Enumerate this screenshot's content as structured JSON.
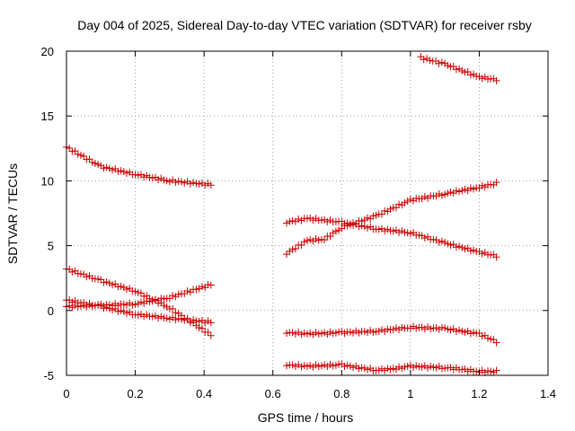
{
  "chart_data": {
    "type": "scatter",
    "title": "Day 004 of 2025, Sidereal Day-to-day VTEC variation (SDTVAR) for receiver rsby",
    "xlabel": "GPS time / hours",
    "ylabel": "SDTVAR / TECUs",
    "xlim": [
      0,
      1.4
    ],
    "ylim": [
      -5,
      20
    ],
    "xticks": [
      0,
      0.2,
      0.4,
      0.6,
      0.8,
      1,
      1.2,
      1.4
    ],
    "xtick_labels": [
      "0",
      "0.2",
      "0.4",
      "0.6",
      "0.8",
      "1",
      "1.2",
      "1.4"
    ],
    "yticks": [
      -5,
      0,
      5,
      10,
      15,
      20
    ],
    "ytick_labels": [
      "-5",
      "0",
      "5",
      "10",
      "15",
      "20"
    ],
    "grid": true,
    "marker": "+",
    "color": "#cc0000",
    "series": [
      {
        "name": "s1",
        "x": [
          0.0,
          0.1,
          0.2,
          0.3,
          0.42
        ],
        "y": [
          12.6,
          11.1,
          10.5,
          10.0,
          9.7
        ]
      },
      {
        "name": "s2",
        "x": [
          0.0,
          0.1,
          0.2,
          0.3,
          0.42
        ],
        "y": [
          3.2,
          2.3,
          1.5,
          0.2,
          -1.9
        ]
      },
      {
        "name": "s3",
        "x": [
          0.0,
          0.1,
          0.2,
          0.3,
          0.42
        ],
        "y": [
          0.3,
          0.4,
          0.5,
          1.0,
          2.0
        ]
      },
      {
        "name": "s4",
        "x": [
          0.0,
          0.1,
          0.2,
          0.3,
          0.42
        ],
        "y": [
          0.8,
          0.3,
          -0.3,
          -0.6,
          -0.9
        ]
      },
      {
        "name": "s5",
        "x": [
          1.03,
          1.1,
          1.2,
          1.25
        ],
        "y": [
          19.5,
          19.0,
          18.0,
          17.8
        ]
      },
      {
        "name": "s6",
        "x": [
          0.64,
          0.7,
          0.75,
          0.8,
          0.9,
          1.0,
          1.1,
          1.2,
          1.25
        ],
        "y": [
          4.4,
          5.4,
          5.5,
          6.4,
          7.3,
          8.5,
          9.0,
          9.5,
          9.8
        ]
      },
      {
        "name": "s7",
        "x": [
          0.64,
          0.7,
          0.8,
          0.9,
          1.0,
          1.1,
          1.2,
          1.25
        ],
        "y": [
          6.8,
          7.1,
          6.8,
          6.3,
          6.0,
          5.2,
          4.5,
          4.2
        ]
      },
      {
        "name": "s8",
        "x": [
          0.64,
          0.7,
          0.8,
          0.9,
          1.0,
          1.1,
          1.2,
          1.25
        ],
        "y": [
          -1.7,
          -1.8,
          -1.7,
          -1.6,
          -1.3,
          -1.4,
          -1.8,
          -2.4
        ]
      },
      {
        "name": "s9",
        "x": [
          0.64,
          0.7,
          0.8,
          0.9,
          0.95,
          1.0,
          1.1,
          1.2,
          1.25
        ],
        "y": [
          -4.2,
          -4.3,
          -4.2,
          -4.6,
          -4.5,
          -4.3,
          -4.4,
          -4.7,
          -4.7
        ]
      }
    ]
  }
}
